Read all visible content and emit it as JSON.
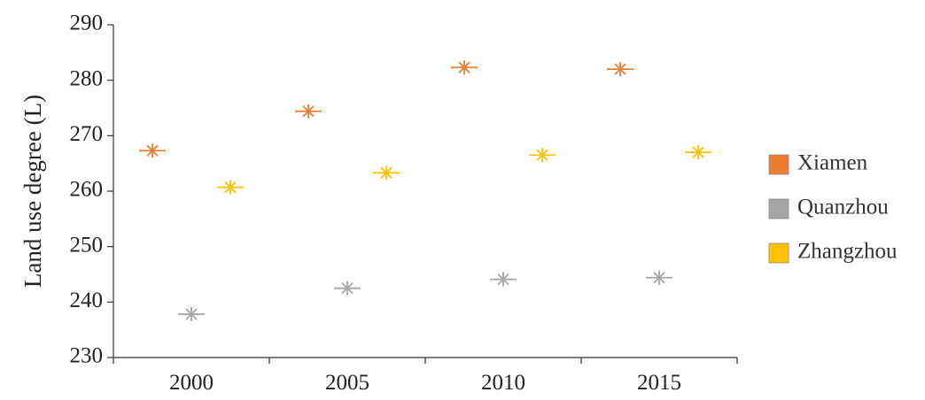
{
  "chart_data": {
    "type": "scatter",
    "title": "",
    "xlabel": "",
    "ylabel": "Land use degree (L)",
    "categories": [
      "2000",
      "2005",
      "2010",
      "2015"
    ],
    "ylim": [
      230,
      290
    ],
    "yticks": [
      "230",
      "240",
      "250",
      "260",
      "270",
      "280",
      "290"
    ],
    "grid": false,
    "legend": "right",
    "marker": "star-asterisk",
    "series": [
      {
        "name": "Xiamen",
        "color": "#ED7D31",
        "values": [
          267.3,
          274.4,
          282.3,
          282.0
        ]
      },
      {
        "name": "Quanzhou",
        "color": "#A5A5A5",
        "values": [
          237.8,
          242.5,
          244.1,
          244.4
        ]
      },
      {
        "name": "Zhangzhou",
        "color": "#FFC000",
        "values": [
          260.7,
          263.3,
          266.5,
          267.0
        ]
      }
    ]
  }
}
